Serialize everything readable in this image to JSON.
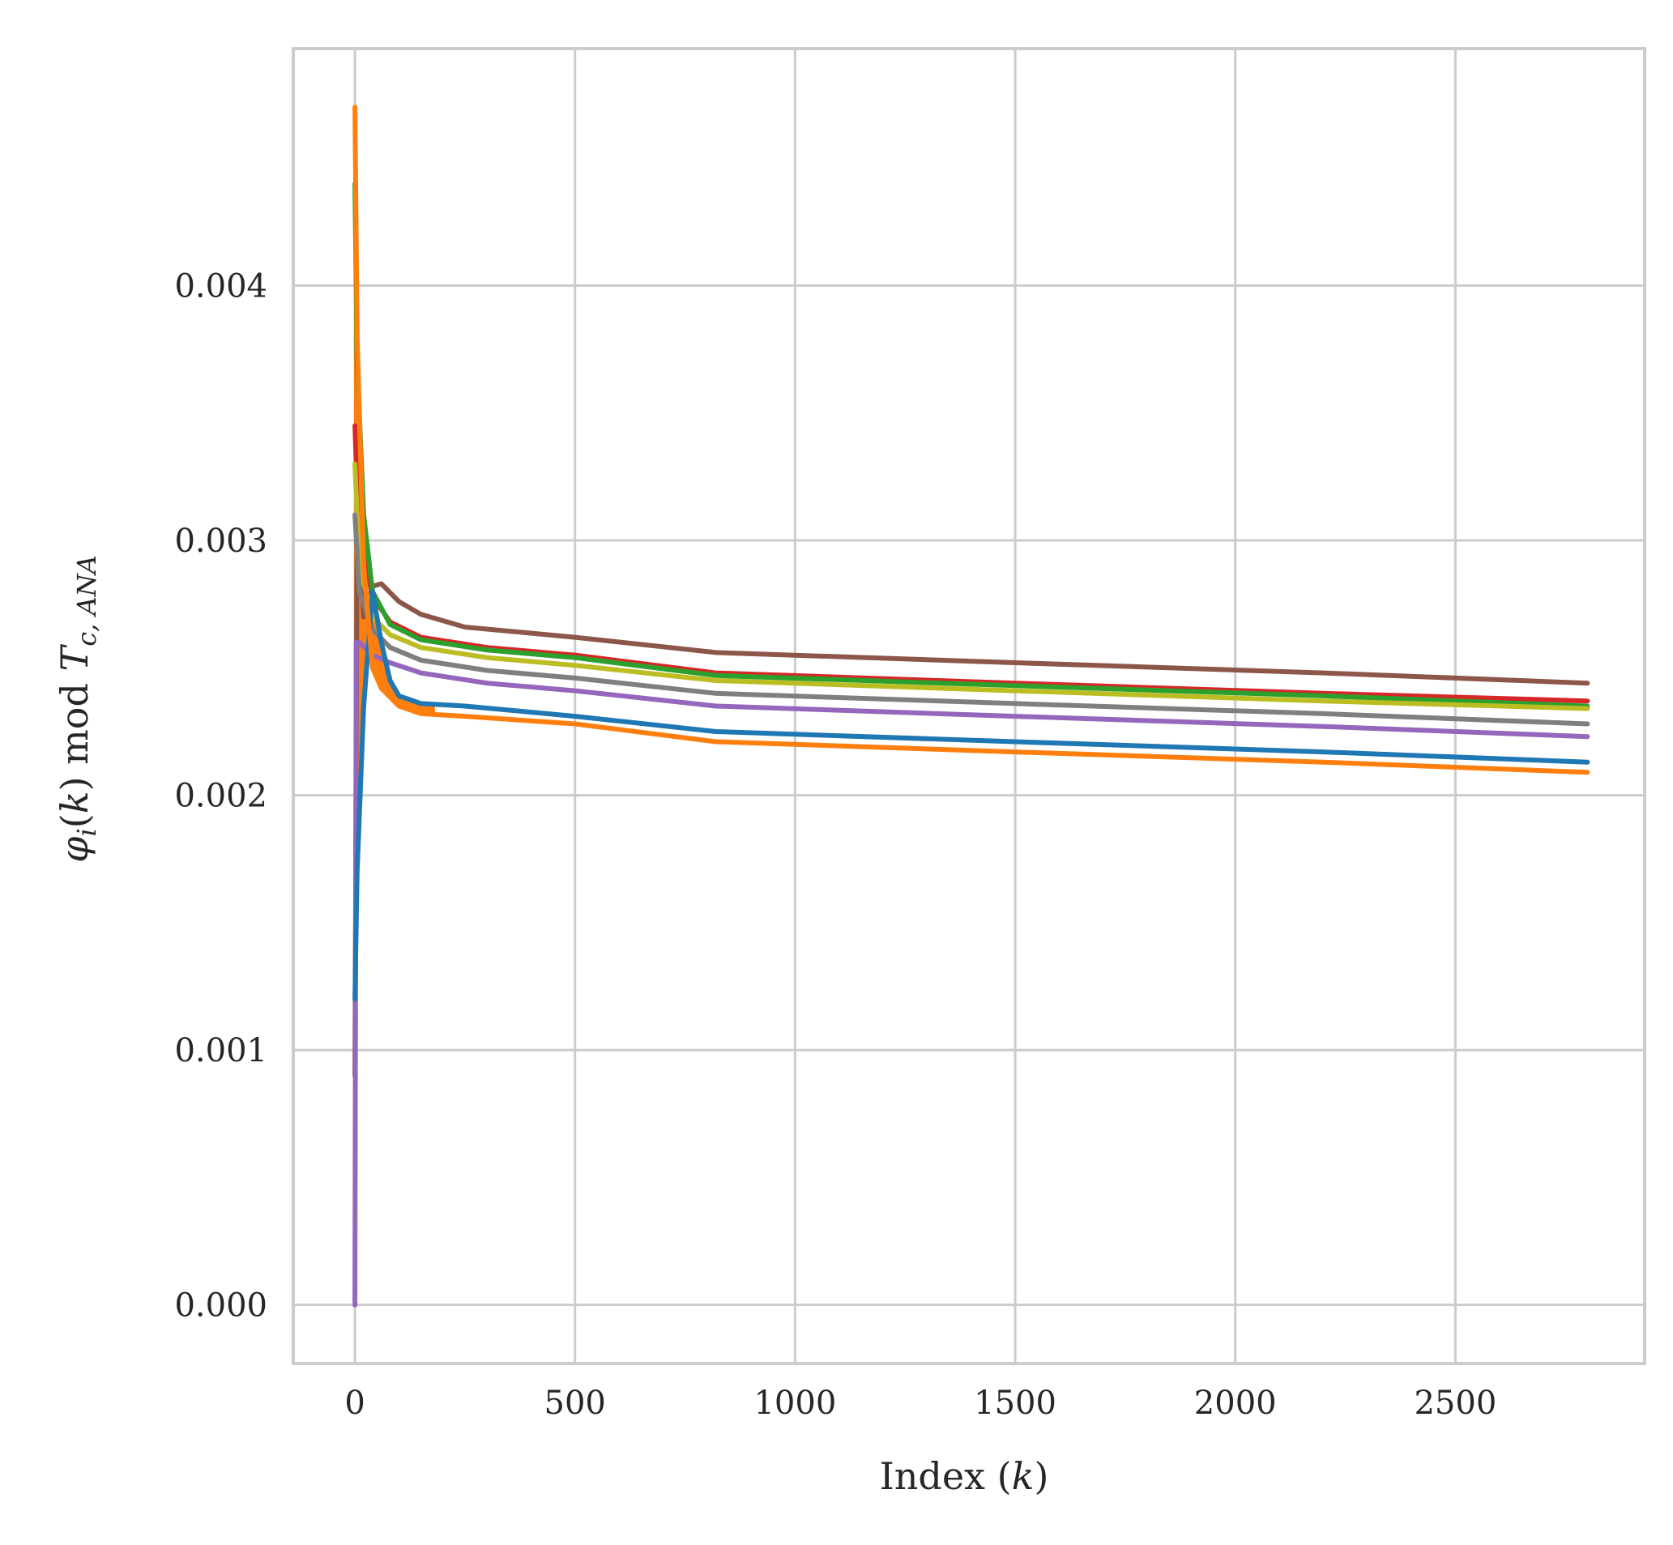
{
  "chart_data": {
    "type": "line",
    "xlabel": {
      "pre": "Index (",
      "var": "k",
      "post": ")"
    },
    "ylabel": {
      "phi": "φ",
      "phi_sub": "i",
      "mid1": "(",
      "k": "k",
      "mid2": ") mod ",
      "T": "T",
      "T_sub": "c, ANA"
    },
    "xlim": [
      -140,
      2930
    ],
    "ylim": [
      -0.00023,
      0.00493
    ],
    "x_ticks": [
      0,
      500,
      1000,
      1500,
      2000,
      2500
    ],
    "x_tick_labels": [
      "0",
      "500",
      "1000",
      "1500",
      "2000",
      "2500"
    ],
    "y_ticks": [
      0.0,
      0.001,
      0.002,
      0.003,
      0.004
    ],
    "y_tick_labels": [
      "0.000",
      "0.001",
      "0.002",
      "0.003",
      "0.004"
    ],
    "grid": true,
    "legend": "none",
    "series": [
      {
        "color": "#8c564b",
        "x": [
          0,
          5,
          20,
          40,
          60,
          100,
          150,
          250,
          500,
          820,
          1500,
          2200,
          2800
        ],
        "y": [
          0.0009,
          0.0031,
          0.0027,
          0.00282,
          0.00283,
          0.00276,
          0.00271,
          0.00266,
          0.00262,
          0.00256,
          0.00252,
          0.00248,
          0.00244
        ]
      },
      {
        "color": "#d62728",
        "x": [
          0,
          5,
          20,
          40,
          80,
          150,
          300,
          500,
          820,
          1500,
          2200,
          2800
        ],
        "y": [
          0.00345,
          0.0032,
          0.00295,
          0.00278,
          0.00268,
          0.00262,
          0.00258,
          0.00255,
          0.00248,
          0.00244,
          0.0024,
          0.00237
        ]
      },
      {
        "color": "#2ca02c",
        "x": [
          0,
          5,
          20,
          40,
          80,
          150,
          300,
          500,
          820,
          1500,
          2200,
          2800
        ],
        "y": [
          0.0044,
          0.0037,
          0.0031,
          0.0028,
          0.00267,
          0.00261,
          0.00257,
          0.00254,
          0.00247,
          0.00243,
          0.00239,
          0.00235
        ]
      },
      {
        "color": "#bcbd22",
        "x": [
          0,
          10,
          40,
          80,
          150,
          300,
          500,
          820,
          1500,
          2200,
          2800
        ],
        "y": [
          0.0033,
          0.0029,
          0.0027,
          0.00263,
          0.00258,
          0.00254,
          0.00251,
          0.00245,
          0.00241,
          0.00237,
          0.00234
        ]
      },
      {
        "color": "#7f7f7f",
        "x": [
          0,
          10,
          40,
          80,
          150,
          300,
          500,
          820,
          1500,
          2200,
          2800
        ],
        "y": [
          0.0031,
          0.0028,
          0.00265,
          0.00258,
          0.00253,
          0.00249,
          0.00246,
          0.0024,
          0.00236,
          0.00232,
          0.00228
        ]
      },
      {
        "color": "#9467bd",
        "x": [
          0,
          1,
          3,
          10,
          40,
          80,
          150,
          300,
          500,
          820,
          1500,
          2200,
          2800
        ],
        "y": [
          0.0,
          0.0009,
          0.0026,
          0.0026,
          0.00255,
          0.00252,
          0.00248,
          0.00244,
          0.00241,
          0.00235,
          0.00231,
          0.00227,
          0.00223
        ]
      },
      {
        "color": "#1f77b4",
        "x": [
          0,
          5,
          20,
          40,
          60,
          80,
          100,
          150,
          250,
          500,
          820,
          1500,
          2200,
          2800
        ],
        "y": [
          0.0012,
          0.0017,
          0.00235,
          0.0028,
          0.0026,
          0.00245,
          0.00239,
          0.00236,
          0.00235,
          0.00231,
          0.00225,
          0.00221,
          0.00217,
          0.00213
        ]
      },
      {
        "color": "#ff7f0e",
        "x": [
          0,
          5,
          20,
          40,
          60,
          100,
          150,
          250,
          500,
          820,
          1500,
          2200,
          2800
        ],
        "y": [
          0.0047,
          0.0038,
          0.0029,
          0.0025,
          0.00242,
          0.00235,
          0.00232,
          0.00231,
          0.00228,
          0.00221,
          0.00217,
          0.00213,
          0.00209
        ]
      }
    ]
  }
}
